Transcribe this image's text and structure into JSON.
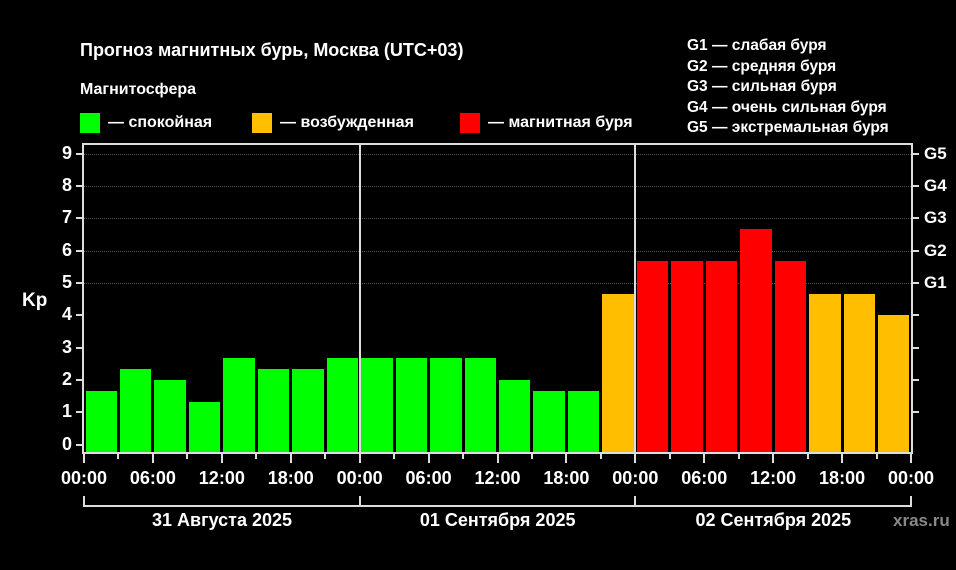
{
  "title": "Прогноз магнитных бурь, Москва (UTC+03)",
  "legend": {
    "heading": "Магнитосфера",
    "items": [
      {
        "label": "— спокойная",
        "color": "#00ff00"
      },
      {
        "label": "— возбужденная",
        "color": "#ffbf00"
      },
      {
        "label": "— магнитная буря",
        "color": "#ff0000"
      }
    ]
  },
  "g_scale": [
    "G1 — слабая буря",
    "G2 — средняя буря",
    "G3 — сильная буря",
    "G4 — очень сильная буря",
    "G5 — экстремальная буря"
  ],
  "watermark": "xras.ru",
  "colors": {
    "quiet": "#00ff00",
    "active": "#ffbf00",
    "storm": "#ff0000",
    "background": "#000000",
    "axis": "#dddddd"
  },
  "chart_data": {
    "type": "bar",
    "title": "Прогноз магнитных бурь, Москва (UTC+03)",
    "xlabel": "",
    "ylabel": "Kp",
    "ylim": [
      0,
      9
    ],
    "yticks": [
      0,
      1,
      2,
      3,
      4,
      5,
      6,
      7,
      8,
      9
    ],
    "right_axis_labels": [
      {
        "kp": 5,
        "label": "G1"
      },
      {
        "kp": 6,
        "label": "G2"
      },
      {
        "kp": 7,
        "label": "G3"
      },
      {
        "kp": 8,
        "label": "G4"
      },
      {
        "kp": 9,
        "label": "G5"
      }
    ],
    "grid": "dotted lines at Kp 5-9",
    "xtick_labels": [
      "00:00",
      "06:00",
      "12:00",
      "18:00",
      "00:00",
      "06:00",
      "12:00",
      "18:00",
      "00:00",
      "06:00",
      "12:00",
      "18:00",
      "00:00"
    ],
    "days": [
      "31 Августа 2025",
      "01 Сентября 2025",
      "02 Сентября 2025"
    ],
    "categories": [
      "31.08 00:00",
      "31.08 03:00",
      "31.08 06:00",
      "31.08 09:00",
      "31.08 12:00",
      "31.08 15:00",
      "31.08 18:00",
      "31.08 21:00",
      "01.09 00:00",
      "01.09 03:00",
      "01.09 06:00",
      "01.09 09:00",
      "01.09 12:00",
      "01.09 15:00",
      "01.09 18:00",
      "01.09 21:00",
      "02.09 00:00",
      "02.09 03:00",
      "02.09 06:00",
      "02.09 09:00",
      "02.09 12:00",
      "02.09 15:00",
      "02.09 18:00",
      "02.09 21:00"
    ],
    "values": [
      1.67,
      2.33,
      2.0,
      1.33,
      2.67,
      2.33,
      2.33,
      2.67,
      2.67,
      2.67,
      2.67,
      2.67,
      2.0,
      1.67,
      1.67,
      4.67,
      5.67,
      5.67,
      5.67,
      6.67,
      5.67,
      4.67,
      4.67,
      4.0
    ],
    "levels": [
      "quiet",
      "quiet",
      "quiet",
      "quiet",
      "quiet",
      "quiet",
      "quiet",
      "quiet",
      "quiet",
      "quiet",
      "quiet",
      "quiet",
      "quiet",
      "quiet",
      "quiet",
      "active",
      "storm",
      "storm",
      "storm",
      "storm",
      "storm",
      "active",
      "active",
      "active"
    ],
    "legend": [
      {
        "name": "спокойная",
        "color": "#00ff00"
      },
      {
        "name": "возбужденная",
        "color": "#ffbf00"
      },
      {
        "name": "магнитная буря",
        "color": "#ff0000"
      }
    ]
  }
}
